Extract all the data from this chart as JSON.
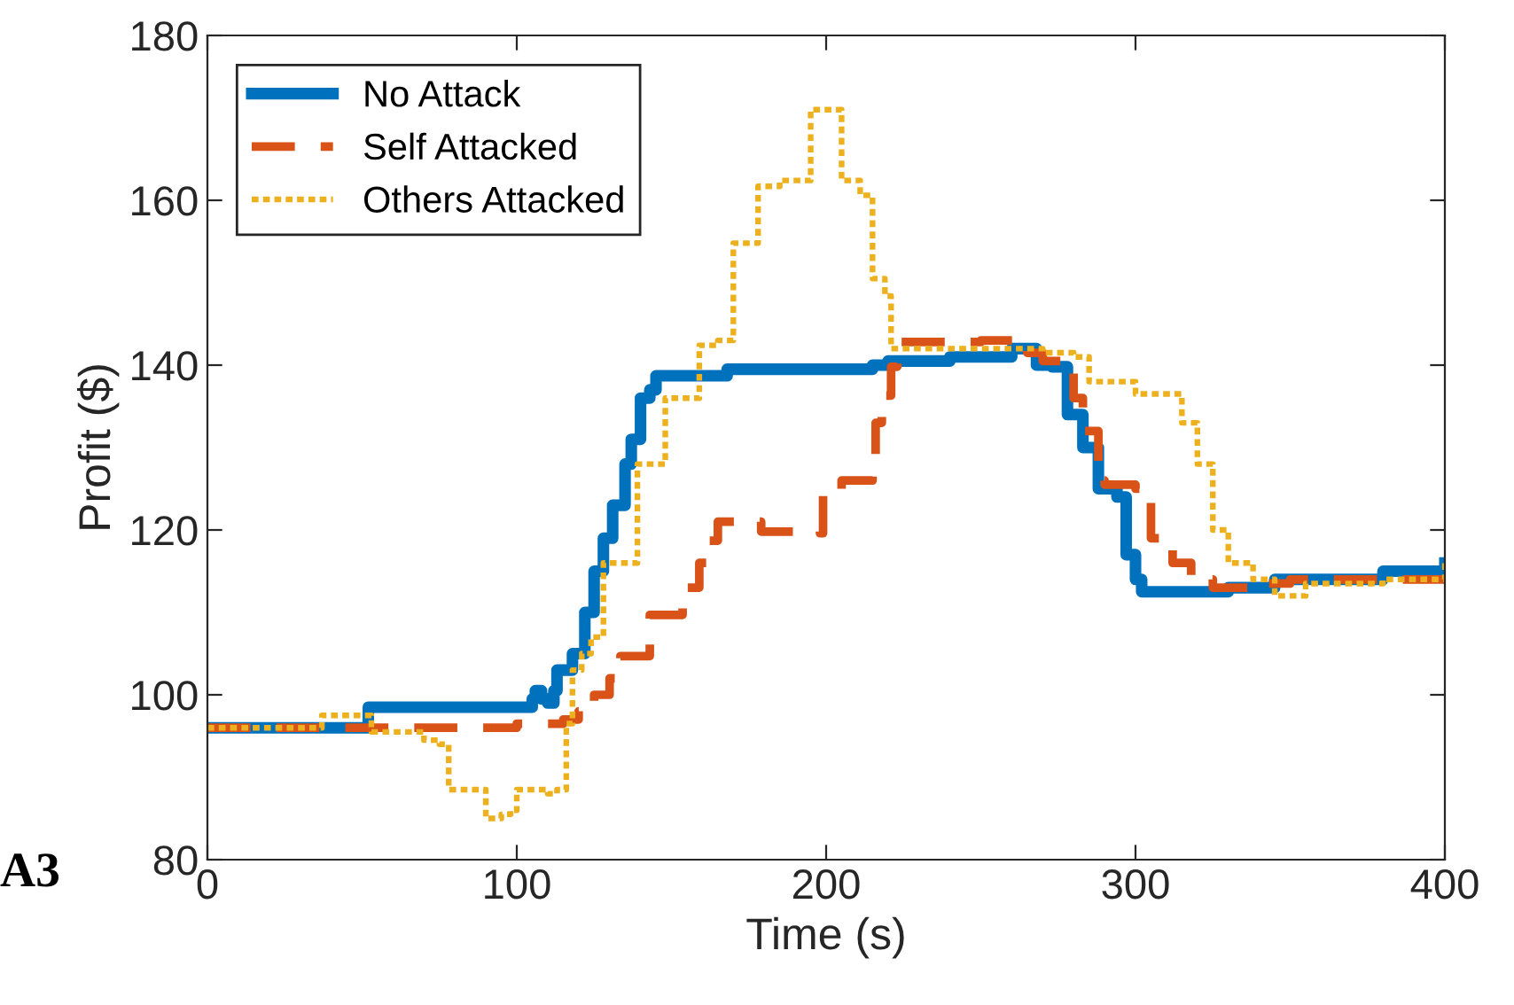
{
  "chart_data": {
    "type": "step",
    "xlabel": "Time (s)",
    "ylabel": "Profit ($)",
    "xlim": [
      0,
      400
    ],
    "ylim": [
      80,
      180
    ],
    "xticks": [
      0,
      100,
      200,
      300,
      400
    ],
    "yticks": [
      80,
      100,
      120,
      140,
      160,
      180
    ],
    "grid": false,
    "legend": "top left",
    "marker": "none",
    "annotations": [
      "A3"
    ],
    "series": [
      {
        "name": "No Attack",
        "color": "#0072bd",
        "line_style": "solid",
        "x": [
          0,
          50,
          52,
          100,
          105,
          106,
          108,
          110,
          112,
          113,
          118,
          122,
          125,
          128,
          131,
          135,
          137,
          140,
          143,
          145,
          168,
          180,
          200,
          215,
          220,
          240,
          260,
          268,
          273,
          278,
          283,
          288,
          294,
          297,
          300,
          302,
          310,
          330,
          345,
          380,
          400
        ],
        "values": [
          96,
          96,
          98.5,
          98.5,
          99.5,
          100.5,
          99.5,
          99,
          100.5,
          103,
          105,
          110,
          115,
          119,
          123,
          128,
          131,
          136,
          137,
          138.7,
          139.5,
          139.5,
          139.5,
          140,
          140.5,
          141,
          142,
          140,
          139.8,
          134,
          130,
          125,
          124,
          117,
          114,
          112.5,
          112.5,
          113,
          114,
          115,
          116
        ]
      },
      {
        "name": "Self Attacked",
        "color": "#d95319",
        "line_style": "dashed",
        "x": [
          0,
          50,
          100,
          115,
          120,
          125,
          130,
          133.5,
          143,
          153.6,
          159,
          162,
          165,
          176,
          179,
          198,
          199,
          205,
          215,
          216,
          218,
          221,
          223,
          250,
          265,
          270,
          280,
          283,
          288,
          290,
          300,
          305,
          312,
          318,
          325,
          340,
          350,
          400
        ],
        "values": [
          96,
          96,
          96.5,
          97,
          98,
          100,
          102,
          104.7,
          109.7,
          113,
          116,
          118.7,
          121,
          121,
          119.8,
          119.6,
          124.5,
          126,
          127,
          133,
          136.3,
          139.8,
          142.8,
          143,
          141.5,
          140.5,
          136,
          132,
          126,
          125.5,
          125,
          119,
          116,
          114,
          113,
          113.5,
          114,
          114
        ]
      },
      {
        "name": "Others Attacked",
        "color": "#edb120",
        "line_style": "dotted",
        "x": [
          0,
          30,
          37,
          52,
          53,
          60,
          70,
          75,
          78,
          88,
          90,
          95,
          98,
          100,
          110,
          113,
          116,
          118,
          121,
          124,
          128,
          139,
          148,
          159,
          165,
          170,
          178,
          185,
          194,
          195,
          202,
          205,
          211,
          215,
          219,
          221,
          270,
          280,
          285,
          300,
          310,
          315,
          320,
          325,
          330,
          338,
          345,
          355,
          380,
          400
        ],
        "values": [
          96,
          96,
          97.5,
          97.5,
          95.5,
          95.5,
          94.5,
          94,
          88.5,
          88.5,
          85,
          85.5,
          86,
          88.5,
          88,
          88.5,
          96.5,
          103,
          105,
          107,
          116,
          128,
          136,
          142.4,
          143,
          154.8,
          161.7,
          162.4,
          162.4,
          171,
          171,
          162.4,
          160.6,
          150.5,
          148.4,
          142,
          141.5,
          141,
          138,
          136.5,
          136.5,
          133,
          128,
          120,
          116,
          114,
          112,
          113.5,
          114,
          116.5
        ]
      }
    ]
  }
}
